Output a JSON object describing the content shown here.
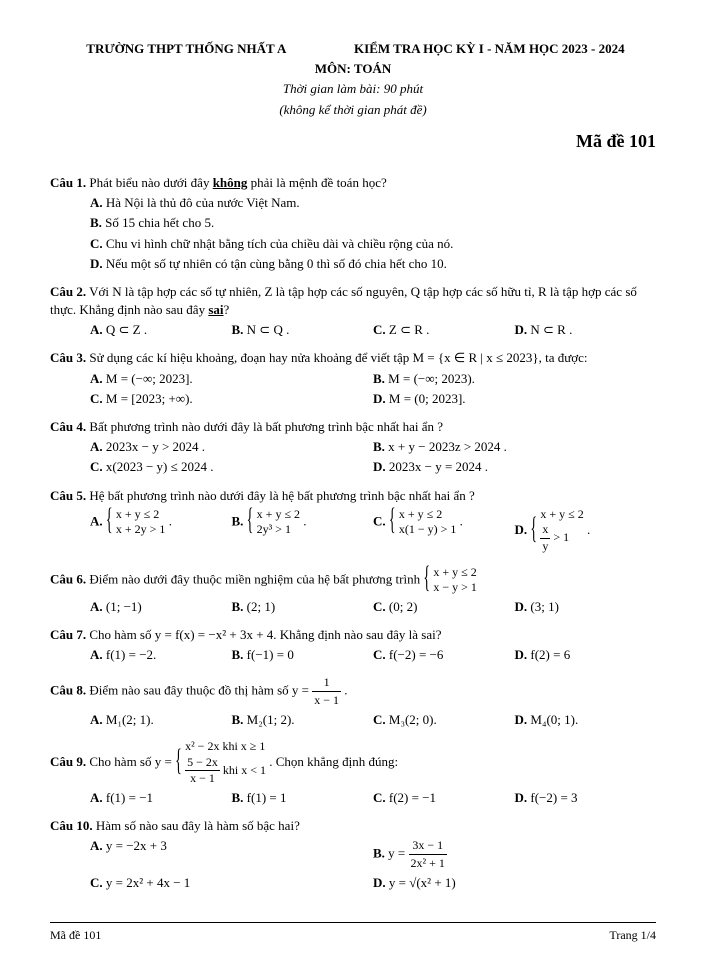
{
  "header": {
    "school": "TRƯỜNG THPT THỐNG NHẤT A",
    "exam_title": "KIỂM TRA HỌC KỲ I - NĂM HỌC 2023 - 2024",
    "subject": "MÔN: TOÁN",
    "time": "Thời gian làm bài: 90 phút",
    "time_note": "(không kể thời gian phát đề)",
    "exam_code": "Mã đề 101"
  },
  "q1": {
    "label": "Câu 1.",
    "text_pre": "Phát biểu nào dưới đây ",
    "text_u": "không",
    "text_post": " phải là mệnh đề toán học?",
    "a": "Hà Nội là thủ đô của nước Việt Nam.",
    "b": "Số 15 chia hết cho 5.",
    "c": "Chu vi hình chữ nhật bằng tích của chiều dài và chiều rộng của nó.",
    "d": "Nếu một số tự nhiên có tận cùng bằng 0 thì số đó chia hết cho 10."
  },
  "q2": {
    "label": "Câu 2.",
    "text_pre": "Với N là tập hợp các số tự nhiên, Z là tập hợp các  số nguyên,  Q tập hợp các  số hữu tỉ,  R là tập hợp các số thực.  Khẳng định nào sau đây ",
    "text_u": "sai",
    "text_post": "?",
    "a": "Q ⊂ Z .",
    "b": "N ⊂ Q .",
    "c": "Z ⊂ R .",
    "d": "N ⊂ R ."
  },
  "q3": {
    "label": "Câu 3.",
    "text": "Sử dụng các kí hiệu khoảng, đoạn hay nửa khoảng để viết tập  M = {x ∈ R | x ≤ 2023}, ta được:",
    "a": "M = (−∞; 2023].",
    "b": "M = (−∞; 2023).",
    "c": "M = [2023; +∞).",
    "d": "M = (0; 2023]."
  },
  "q4": {
    "label": "Câu 4.",
    "text": "Bất phương trình nào dưới đây là bất phương trình bậc nhất hai ẩn ?",
    "a": "2023x − y > 2024 .",
    "b": "x + y − 2023z > 2024 .",
    "c": "x(2023 − y) ≤ 2024 .",
    "d": "2023x − y = 2024 ."
  },
  "q5": {
    "label": "Câu 5.",
    "text": "Hệ bất phương trình nào dưới đây là hệ bất phương trình bậc nhất hai ẩn ?",
    "a1": "x + y ≤ 2",
    "a2": "x + 2y > 1",
    "b1": "x + y ≤ 2",
    "b2": "2y³ > 1",
    "c1": "x + y ≤ 2",
    "c2": "x(1 − y) > 1",
    "d1": "x + y ≤ 2",
    "d2n": "x",
    "d2d": "y",
    "d2post": " > 1",
    "punct": "."
  },
  "q6": {
    "label": "Câu 6.",
    "text": "Điểm nào dưới đây thuộc miền nghiệm của hệ bất phương trình ",
    "sys1": "x + y ≤ 2",
    "sys2": "x − y > 1",
    "a": "(1; −1)",
    "b": "(2; 1)",
    "c": "(0; 2)",
    "d": "(3; 1)"
  },
  "q7": {
    "label": "Câu 7.",
    "text": "Cho hàm số  y = f(x) = −x² + 3x + 4. Khẳng định nào sau đây là sai?",
    "a": "f(1) = −2.",
    "b": "f(−1) = 0",
    "c": "f(−2) = −6",
    "d": "f(2) = 6"
  },
  "q8": {
    "label": "Câu 8.",
    "text_pre": "Điểm nào sau đây thuộc đồ thị hàm số  y = ",
    "num": "1",
    "den": "x − 1",
    "text_post": ".",
    "a": "M₁(2; 1).",
    "b": "M₂(1; 2).",
    "c": "M₃(2; 0).",
    "d": "M₄(0; 1)."
  },
  "q9": {
    "label": "Câu 9.",
    "text_pre": "Cho hàm số  y = ",
    "row1": "x² − 2x khi x ≥ 1",
    "row2num": "5 − 2x",
    "row2den": "x − 1",
    "row2cond": " khi x < 1",
    "text_post": ". Chọn khẳng định đúng:",
    "a": "f(1) = −1",
    "b": "f(1) = 1",
    "c": "f(2) = −1",
    "d": "f(−2) = 3"
  },
  "q10": {
    "label": "Câu 10.",
    "text": "Hàm số nào sau đây là hàm số bậc hai?",
    "a": "y = −2x + 3",
    "b_pre": "y = ",
    "b_num": "3x − 1",
    "b_den": "2x² + 1",
    "c": "y = 2x² + 4x − 1",
    "d": "y = √(x² + 1)"
  },
  "footer": {
    "left": "Mã đề 101",
    "right": "Trang 1/4"
  }
}
